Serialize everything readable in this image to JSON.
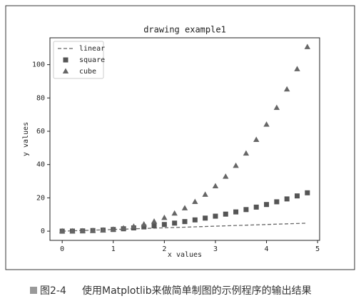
{
  "chart_data": {
    "type": "scatter-line",
    "title": "drawing example1",
    "x_label": "x values",
    "y_label": "y values",
    "x": [
      0,
      0.2,
      0.4,
      0.6,
      0.8,
      1.0,
      1.2,
      1.4,
      1.6,
      1.8,
      2.0,
      2.2,
      2.4,
      2.6,
      2.8,
      3.0,
      3.2,
      3.4,
      3.6,
      3.8,
      4.0,
      4.2,
      4.4,
      4.6,
      4.8
    ],
    "series": [
      {
        "name": "linear",
        "color": "#666666",
        "linestyle": "dashed",
        "values": [
          0,
          0.2,
          0.4,
          0.6,
          0.8,
          1.0,
          1.2,
          1.4,
          1.6,
          1.8,
          2.0,
          2.2,
          2.4,
          2.6,
          2.8,
          3.0,
          3.2,
          3.4,
          3.6,
          3.8,
          4.0,
          4.2,
          4.4,
          4.6,
          4.8
        ]
      },
      {
        "name": "square",
        "color": "#555555",
        "marker": "square",
        "values": [
          0,
          0.04,
          0.16,
          0.36,
          0.64,
          1,
          1.44,
          1.96,
          2.56,
          3.24,
          4,
          4.84,
          5.76,
          6.76,
          7.84,
          9,
          10.24,
          11.56,
          12.96,
          14.44,
          16,
          17.64,
          19.36,
          21.16,
          23.04
        ]
      },
      {
        "name": "cube",
        "color": "#666666",
        "marker": "triangle",
        "values": [
          0,
          0.008,
          0.064,
          0.216,
          0.512,
          1,
          1.728,
          2.744,
          4.096,
          5.832,
          8,
          10.648,
          13.824,
          17.576,
          21.952,
          27,
          32.768,
          39.304,
          46.656,
          54.872,
          64,
          74.088,
          85.184,
          97.336,
          110.592
        ]
      }
    ],
    "xlim": [
      -0.24,
      5.04
    ],
    "ylim": [
      -5.53,
      116.12
    ],
    "xticks": [
      0,
      1,
      2,
      3,
      4,
      5
    ],
    "yticks": [
      0,
      20,
      40,
      60,
      80,
      100
    ],
    "grid": false,
    "legend": "upper-left"
  },
  "caption": {
    "label": "图2-4",
    "text": "使用Matplotlib来做简单制图的示例程序的输出结果"
  }
}
